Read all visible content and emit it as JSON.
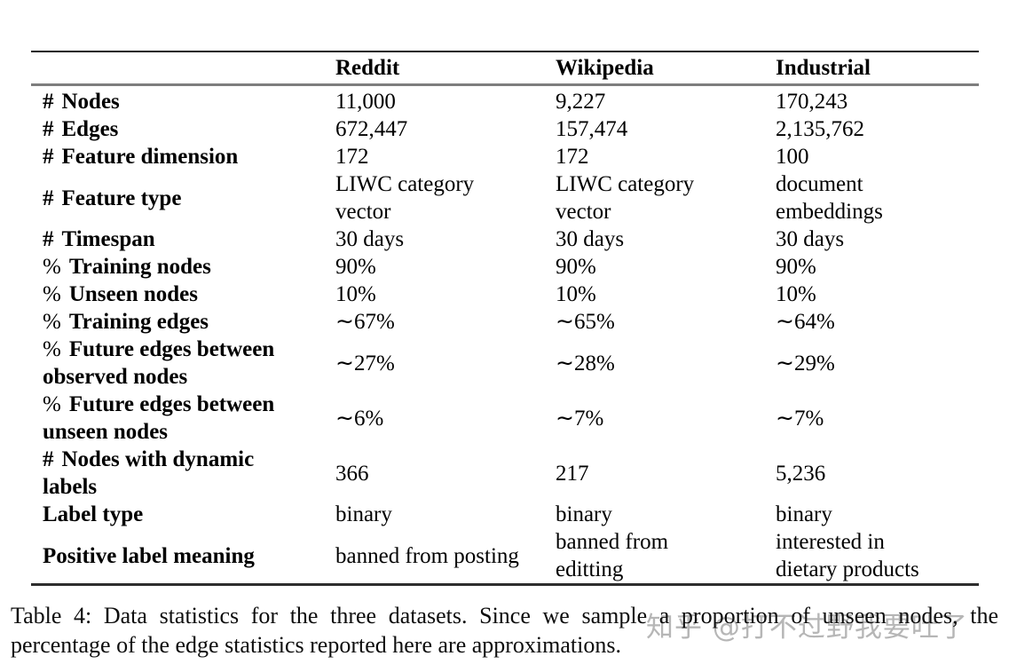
{
  "table": {
    "columns": [
      "Reddit",
      "Wikipedia",
      "Industrial"
    ],
    "rows": [
      {
        "prefix": "#",
        "label": "Nodes",
        "values": [
          "11,000",
          "9,227",
          "170,243"
        ]
      },
      {
        "prefix": "#",
        "label": "Edges",
        "values": [
          "672,447",
          "157,474",
          "2,135,762"
        ]
      },
      {
        "prefix": "#",
        "label": "Feature dimension",
        "values": [
          "172",
          "172",
          "100"
        ]
      },
      {
        "prefix": "#",
        "label": "Feature type",
        "values": [
          "LIWC category vector",
          "LIWC category vector",
          "document embeddings"
        ]
      },
      {
        "prefix": "#",
        "label": "Timespan",
        "values": [
          "30 days",
          "30 days",
          "30 days"
        ]
      },
      {
        "prefix": "%",
        "label": "Training nodes",
        "values": [
          "90%",
          "90%",
          "90%"
        ]
      },
      {
        "prefix": "%",
        "label": "Unseen nodes",
        "values": [
          "10%",
          "10%",
          "10%"
        ]
      },
      {
        "prefix": "%",
        "label": "Training edges",
        "values": [
          "∼67%",
          "∼65%",
          "∼64%"
        ]
      },
      {
        "prefix": "%",
        "label": "Future edges between observed nodes",
        "values": [
          "∼27%",
          "∼28%",
          "∼29%"
        ]
      },
      {
        "prefix": "%",
        "label": "Future edges between unseen nodes",
        "values": [
          "∼6%",
          "∼7%",
          "∼7%"
        ]
      },
      {
        "prefix": "#",
        "label": "Nodes with dynamic labels",
        "values": [
          "366",
          "217",
          "5,236"
        ]
      },
      {
        "prefix": "",
        "label": "Label type",
        "values": [
          "binary",
          "binary",
          "binary"
        ]
      },
      {
        "prefix": "",
        "label": "Positive label meaning",
        "values": [
          "banned from posting",
          "banned from editting",
          "interested in dietary products"
        ]
      }
    ]
  },
  "caption": "Table 4: Data statistics for the three datasets. Since we sample a proportion of unseen nodes, the percentage of the edge statistics reported here are approximations.",
  "watermark": "知乎 @打不过野我要吐了",
  "colors": {
    "background": "#ffffff",
    "text": "#000000",
    "rule_top": "#1c1c1c",
    "rule_header": "#7e7e7e",
    "rule_bottom": "#2e2e2e",
    "watermark": "#b6b6b6"
  }
}
